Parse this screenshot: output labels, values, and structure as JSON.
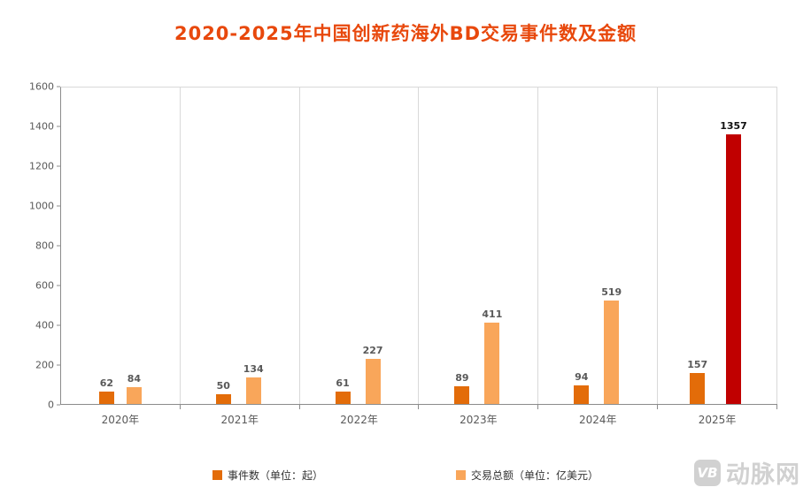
{
  "title": "2020-2025年中国创新药海外BD交易事件数及金额",
  "chart_data": {
    "type": "bar",
    "title": "2020-2025年中国创新药海外BD交易事件数及金额",
    "categories": [
      "2020年",
      "2021年",
      "2022年",
      "2023年",
      "2024年",
      "2025年"
    ],
    "series": [
      {
        "name": "事件数（单位：起）",
        "values": [
          62,
          50,
          61,
          89,
          94,
          157
        ],
        "color": "#e36c09"
      },
      {
        "name": "交易总额（单位：亿美元）",
        "values": [
          84,
          134,
          227,
          411,
          519,
          1357
        ],
        "color": "#f9a65a",
        "highlight": {
          "index": 5,
          "color": "#c00000"
        }
      }
    ],
    "xlabel": "",
    "ylabel": "",
    "ylim": [
      0,
      1600
    ],
    "ytick_interval": 200,
    "grid": "vertical",
    "legend_position": "bottom",
    "title_color": "#e8480c"
  },
  "watermark": {
    "logo": "VB",
    "text": "动脉网"
  }
}
